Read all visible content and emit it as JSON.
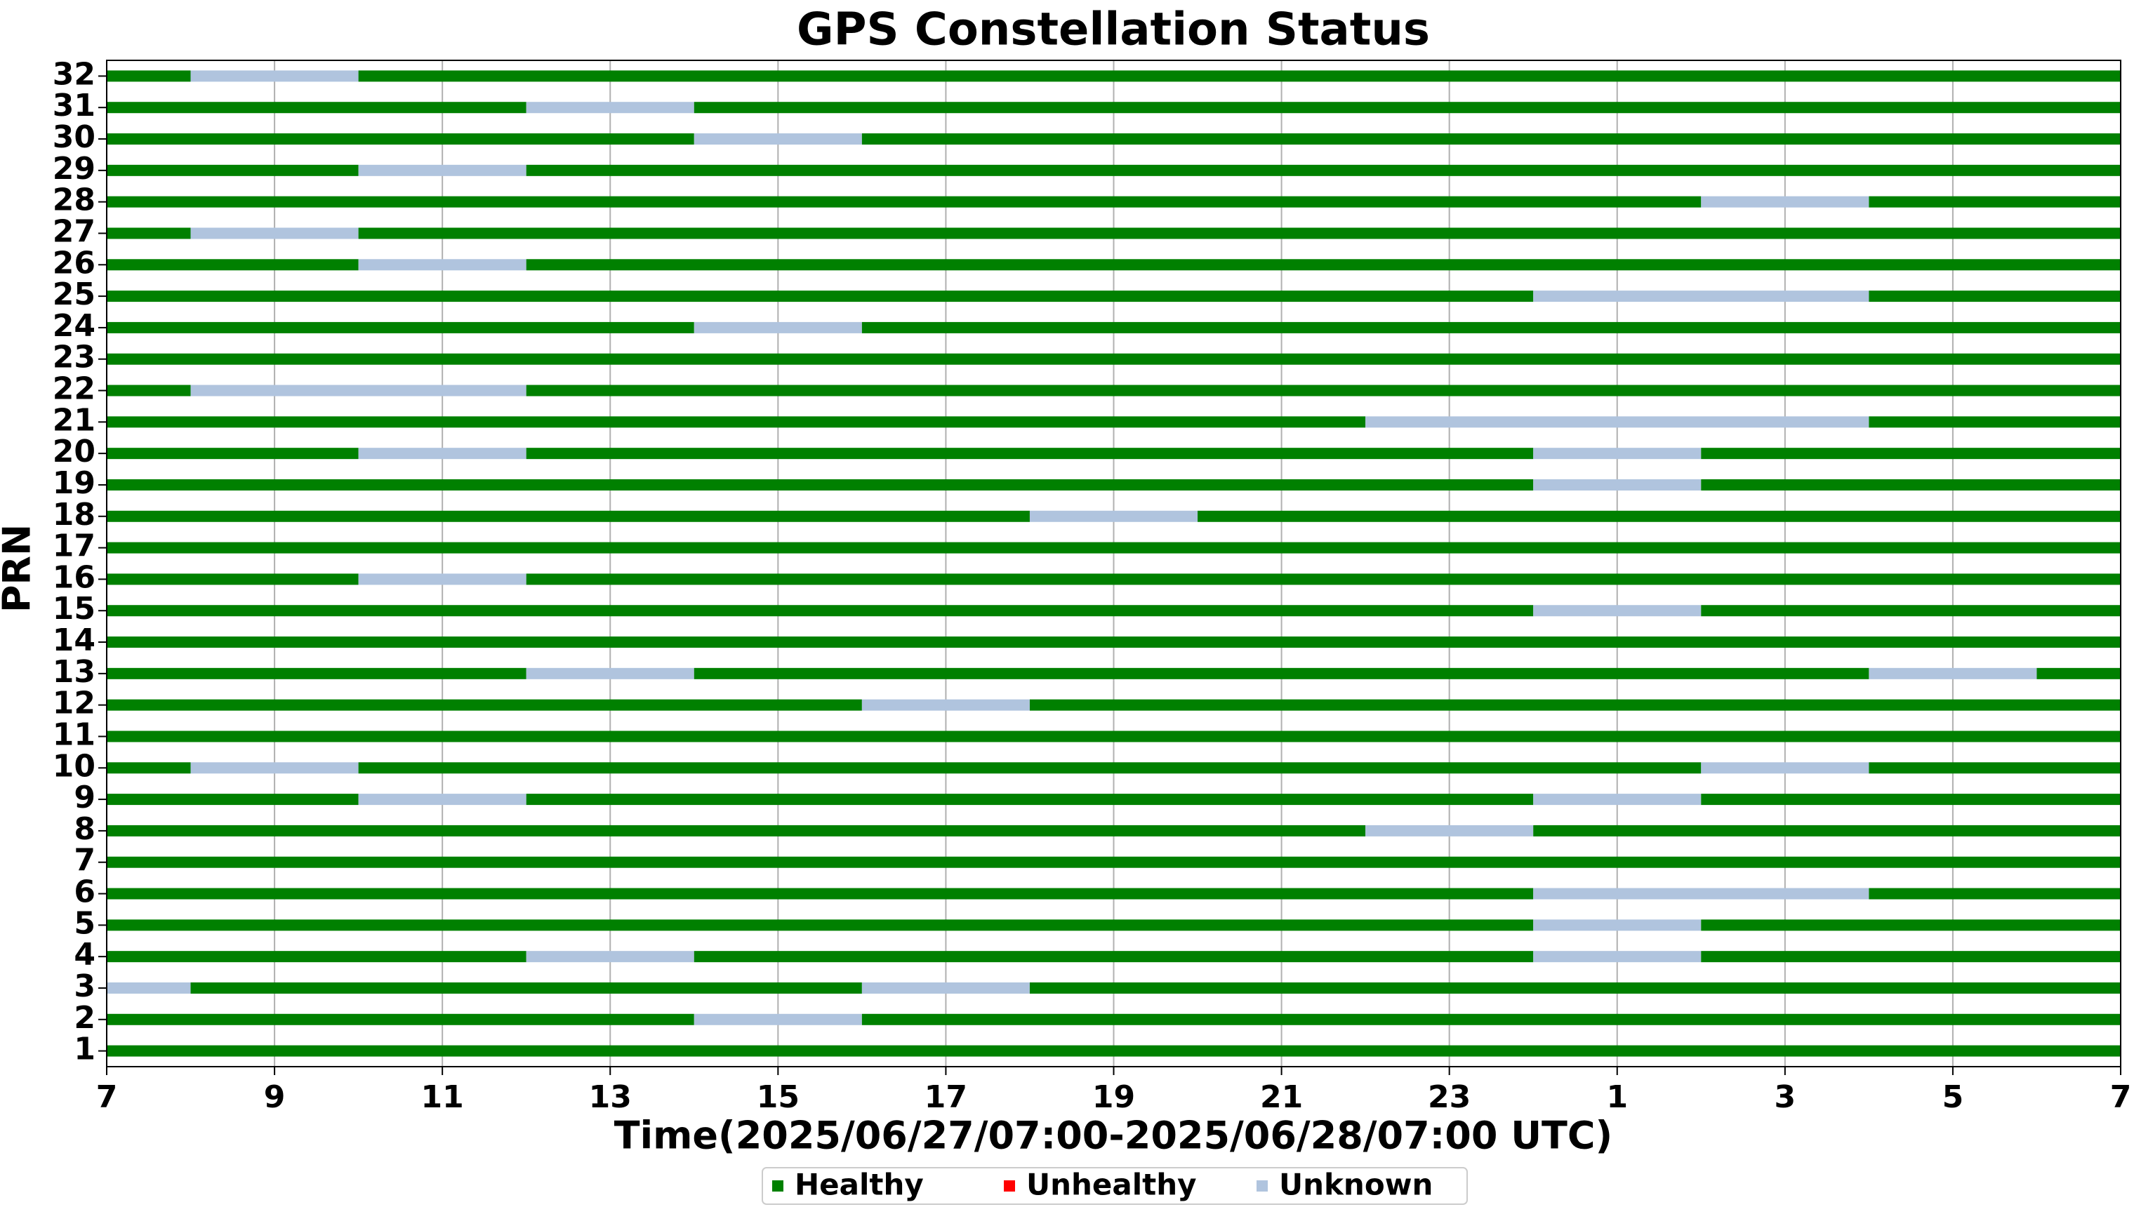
{
  "chart_data": {
    "type": "timeline",
    "title": "GPS Constellation Status",
    "xlabel": "Time(2025/06/27/07:00-2025/06/28/07:00 UTC)",
    "ylabel": "PRN",
    "xlim": [
      0,
      24
    ],
    "xticks": [
      {
        "value": 0,
        "label": "7"
      },
      {
        "value": 2,
        "label": "9"
      },
      {
        "value": 4,
        "label": "11"
      },
      {
        "value": 6,
        "label": "13"
      },
      {
        "value": 8,
        "label": "15"
      },
      {
        "value": 10,
        "label": "17"
      },
      {
        "value": 12,
        "label": "19"
      },
      {
        "value": 14,
        "label": "21"
      },
      {
        "value": 16,
        "label": "23"
      },
      {
        "value": 18,
        "label": "1"
      },
      {
        "value": 20,
        "label": "3"
      },
      {
        "value": 22,
        "label": "5"
      },
      {
        "value": 24,
        "label": "7"
      }
    ],
    "grid": true,
    "states": [
      {
        "name": "Healthy",
        "color": "#008000"
      },
      {
        "name": "Unhealthy",
        "color": "#ff0000"
      },
      {
        "name": "Unknown",
        "color": "#b0c4de"
      }
    ],
    "legend": "bottom",
    "categories": [
      "1",
      "2",
      "3",
      "4",
      "5",
      "6",
      "7",
      "8",
      "9",
      "10",
      "11",
      "12",
      "13",
      "14",
      "15",
      "16",
      "17",
      "18",
      "19",
      "20",
      "21",
      "22",
      "23",
      "24",
      "25",
      "26",
      "27",
      "28",
      "29",
      "30",
      "31",
      "32"
    ],
    "segments": [
      [
        [
          0,
          24,
          0
        ]
      ],
      [
        [
          0,
          7,
          0
        ],
        [
          7,
          9,
          2
        ],
        [
          9,
          24,
          0
        ]
      ],
      [
        [
          0,
          1,
          2
        ],
        [
          1,
          9,
          0
        ],
        [
          9,
          11,
          2
        ],
        [
          11,
          24,
          0
        ]
      ],
      [
        [
          0,
          5,
          0
        ],
        [
          5,
          7,
          2
        ],
        [
          7,
          17,
          0
        ],
        [
          17,
          19,
          2
        ],
        [
          19,
          24,
          0
        ]
      ],
      [
        [
          0,
          17,
          0
        ],
        [
          17,
          19,
          2
        ],
        [
          19,
          24,
          0
        ]
      ],
      [
        [
          0,
          17,
          0
        ],
        [
          17,
          21,
          2
        ],
        [
          21,
          24,
          0
        ]
      ],
      [
        [
          0,
          24,
          0
        ]
      ],
      [
        [
          0,
          15,
          0
        ],
        [
          15,
          17,
          2
        ],
        [
          17,
          24,
          0
        ]
      ],
      [
        [
          0,
          3,
          0
        ],
        [
          3,
          5,
          2
        ],
        [
          5,
          17,
          0
        ],
        [
          17,
          19,
          2
        ],
        [
          19,
          24,
          0
        ]
      ],
      [
        [
          0,
          1,
          0
        ],
        [
          1,
          3,
          2
        ],
        [
          3,
          19,
          0
        ],
        [
          19,
          21,
          2
        ],
        [
          21,
          24,
          0
        ]
      ],
      [
        [
          0,
          24,
          0
        ]
      ],
      [
        [
          0,
          9,
          0
        ],
        [
          9,
          11,
          2
        ],
        [
          11,
          24,
          0
        ]
      ],
      [
        [
          0,
          5,
          0
        ],
        [
          5,
          7,
          2
        ],
        [
          7,
          21,
          0
        ],
        [
          21,
          23,
          2
        ],
        [
          23,
          24,
          0
        ]
      ],
      [
        [
          0,
          24,
          0
        ]
      ],
      [
        [
          0,
          17,
          0
        ],
        [
          17,
          19,
          2
        ],
        [
          19,
          24,
          0
        ]
      ],
      [
        [
          0,
          3,
          0
        ],
        [
          3,
          5,
          2
        ],
        [
          5,
          24,
          0
        ]
      ],
      [
        [
          0,
          24,
          0
        ]
      ],
      [
        [
          0,
          11,
          0
        ],
        [
          11,
          13,
          2
        ],
        [
          13,
          24,
          0
        ]
      ],
      [
        [
          0,
          17,
          0
        ],
        [
          17,
          19,
          2
        ],
        [
          19,
          24,
          0
        ]
      ],
      [
        [
          0,
          3,
          0
        ],
        [
          3,
          5,
          2
        ],
        [
          5,
          17,
          0
        ],
        [
          17,
          19,
          2
        ],
        [
          19,
          24,
          0
        ]
      ],
      [
        [
          0,
          15,
          0
        ],
        [
          15,
          21,
          2
        ],
        [
          21,
          24,
          0
        ]
      ],
      [
        [
          0,
          1,
          0
        ],
        [
          1,
          5,
          2
        ],
        [
          5,
          24,
          0
        ]
      ],
      [
        [
          0,
          24,
          0
        ]
      ],
      [
        [
          0,
          7,
          0
        ],
        [
          7,
          9,
          2
        ],
        [
          9,
          24,
          0
        ]
      ],
      [
        [
          0,
          17,
          0
        ],
        [
          17,
          21,
          2
        ],
        [
          21,
          24,
          0
        ]
      ],
      [
        [
          0,
          3,
          0
        ],
        [
          3,
          5,
          2
        ],
        [
          5,
          24,
          0
        ]
      ],
      [
        [
          0,
          1,
          0
        ],
        [
          1,
          3,
          2
        ],
        [
          3,
          24,
          0
        ]
      ],
      [
        [
          0,
          19,
          0
        ],
        [
          19,
          21,
          2
        ],
        [
          21,
          24,
          0
        ]
      ],
      [
        [
          0,
          3,
          0
        ],
        [
          3,
          5,
          2
        ],
        [
          5,
          24,
          0
        ]
      ],
      [
        [
          0,
          7,
          0
        ],
        [
          7,
          9,
          2
        ],
        [
          9,
          24,
          0
        ]
      ],
      [
        [
          0,
          5,
          0
        ],
        [
          5,
          7,
          2
        ],
        [
          7,
          24,
          0
        ]
      ],
      [
        [
          0,
          1,
          0
        ],
        [
          1,
          3,
          2
        ],
        [
          3,
          24,
          0
        ]
      ]
    ]
  }
}
